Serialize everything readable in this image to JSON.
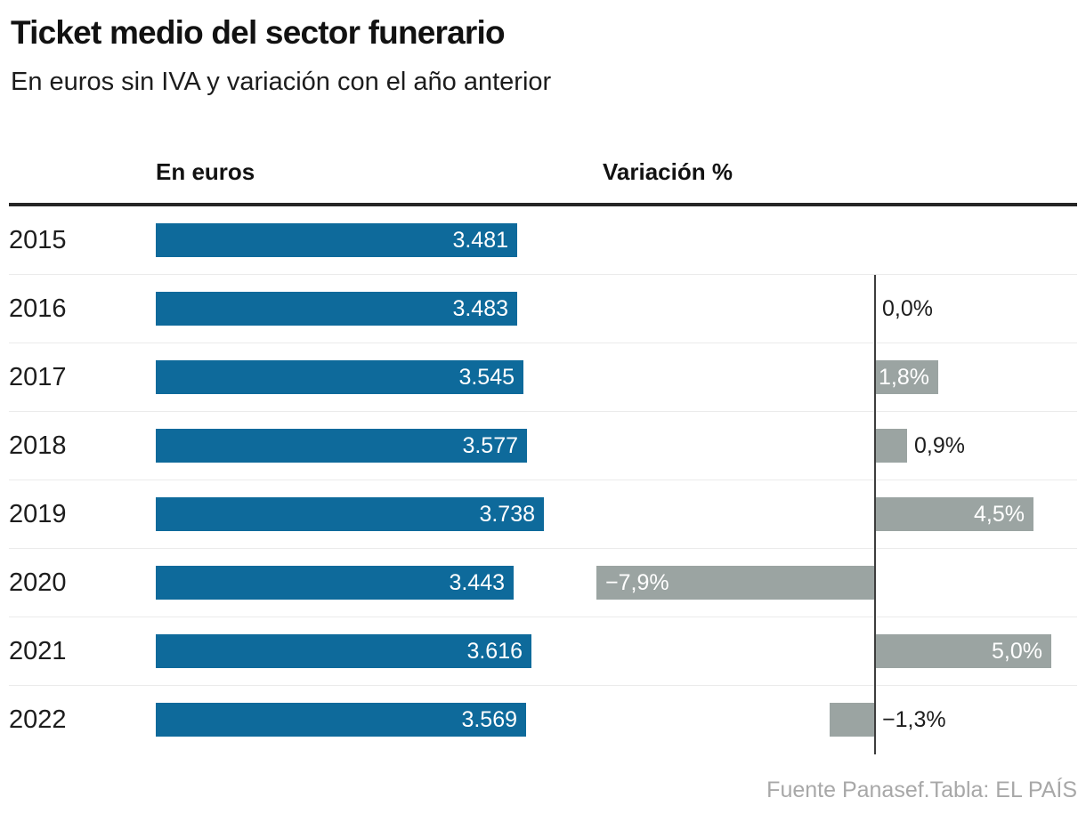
{
  "title": "Ticket medio del sector funerario",
  "subtitle": "En euros sin IVA y variación con el año anterior",
  "columns": {
    "euros": "En euros",
    "variation": "Variación %"
  },
  "footer": "Fuente Panasef.Tabla: EL PAÍS",
  "colors": {
    "euros_bar": "#0e6a9b",
    "variation_bar": "#9ba4a2",
    "axis_line": "#3d3d3d",
    "header_rule": "#262626",
    "row_separator": "#ebebeb",
    "inside_bar_label": "#ffffff",
    "text": "#1d1d1d",
    "footer_text": "#a8a8a8"
  },
  "chart_data": {
    "type": "bar",
    "orientation": "horizontal",
    "title": "Ticket medio del sector funerario",
    "subtitle": "En euros sin IVA y variación con el año anterior",
    "categories": [
      "2015",
      "2016",
      "2017",
      "2018",
      "2019",
      "2020",
      "2021",
      "2022"
    ],
    "series": [
      {
        "name": "En euros",
        "values": [
          3481,
          3483,
          3545,
          3577,
          3738,
          3443,
          3616,
          3569
        ],
        "labels": [
          "3.481",
          "3.483",
          "3.545",
          "3.577",
          "3.738",
          "3.443",
          "3.616",
          "3.569"
        ]
      },
      {
        "name": "Variación %",
        "values": [
          null,
          0.0,
          1.8,
          0.9,
          4.5,
          -7.9,
          5.0,
          -1.3
        ],
        "labels": [
          null,
          "0,0%",
          "1,8%",
          "0,9%",
          "4,5%",
          "−7,9%",
          "5,0%",
          "−1,3%"
        ]
      }
    ],
    "xlabel": "",
    "ylabel": "",
    "grid": false,
    "legend_position": "column-headers",
    "variation_axis_zero_line": true
  }
}
